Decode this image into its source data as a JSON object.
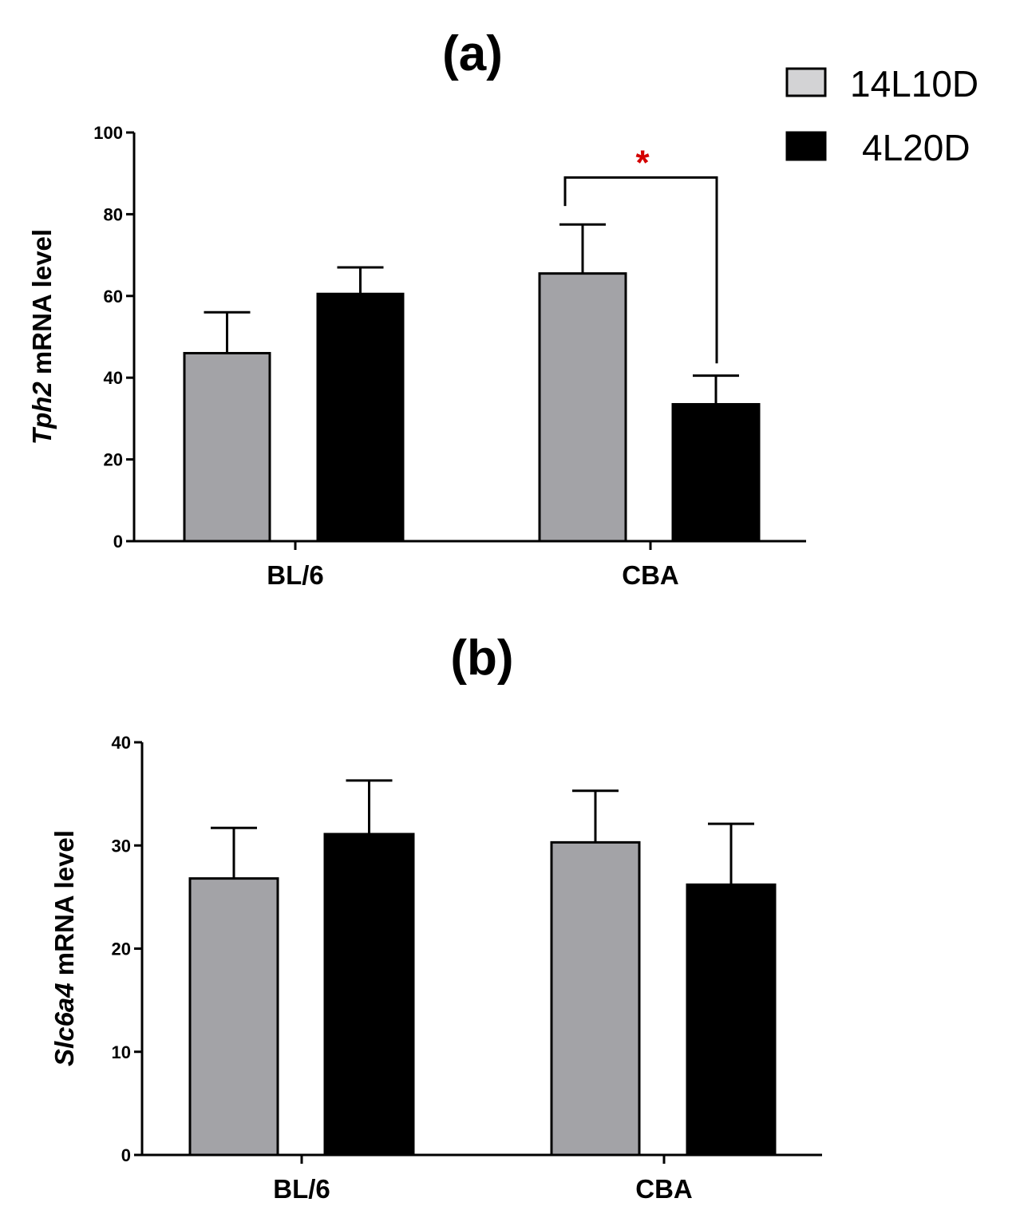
{
  "legend": [
    {
      "label": "14L10D",
      "color": "#a3a3a7"
    },
    {
      "label": "4L20D",
      "color": "#000000"
    }
  ],
  "chart_data": [
    {
      "type": "bar",
      "title": "(a)",
      "ylabel_italic": "Tph2",
      "ylabel_rest": " mRNA level",
      "xlabel": "",
      "categories": [
        "BL/6",
        "CBA"
      ],
      "ylim": [
        0,
        100
      ],
      "yticks": [
        0,
        20,
        40,
        60,
        80,
        100
      ],
      "series": [
        {
          "name": "14L10D",
          "values": [
            46,
            65.5
          ],
          "errors": [
            10,
            12
          ],
          "color": "#a3a3a7"
        },
        {
          "name": "4L20D",
          "values": [
            60.5,
            33.5
          ],
          "errors": [
            6.5,
            7
          ],
          "color": "#000000"
        }
      ],
      "significance": [
        {
          "category": "CBA",
          "label": "*",
          "color": "#d40000",
          "bracket_y": 89,
          "left_end": 82,
          "right_end": 43.5
        }
      ]
    },
    {
      "type": "bar",
      "title": "(b)",
      "ylabel_italic": "Slc6a4",
      "ylabel_rest": " mRNA level",
      "xlabel": "",
      "categories": [
        "BL/6",
        "CBA"
      ],
      "ylim": [
        0,
        40
      ],
      "yticks": [
        0,
        10,
        20,
        30,
        40
      ],
      "series": [
        {
          "name": "14L10D",
          "values": [
            26.8,
            30.3
          ],
          "errors": [
            4.9,
            5.0
          ],
          "color": "#a3a3a7"
        },
        {
          "name": "4L20D",
          "values": [
            31.1,
            26.2
          ],
          "errors": [
            5.2,
            5.9
          ],
          "color": "#000000"
        }
      ],
      "significance": []
    }
  ]
}
